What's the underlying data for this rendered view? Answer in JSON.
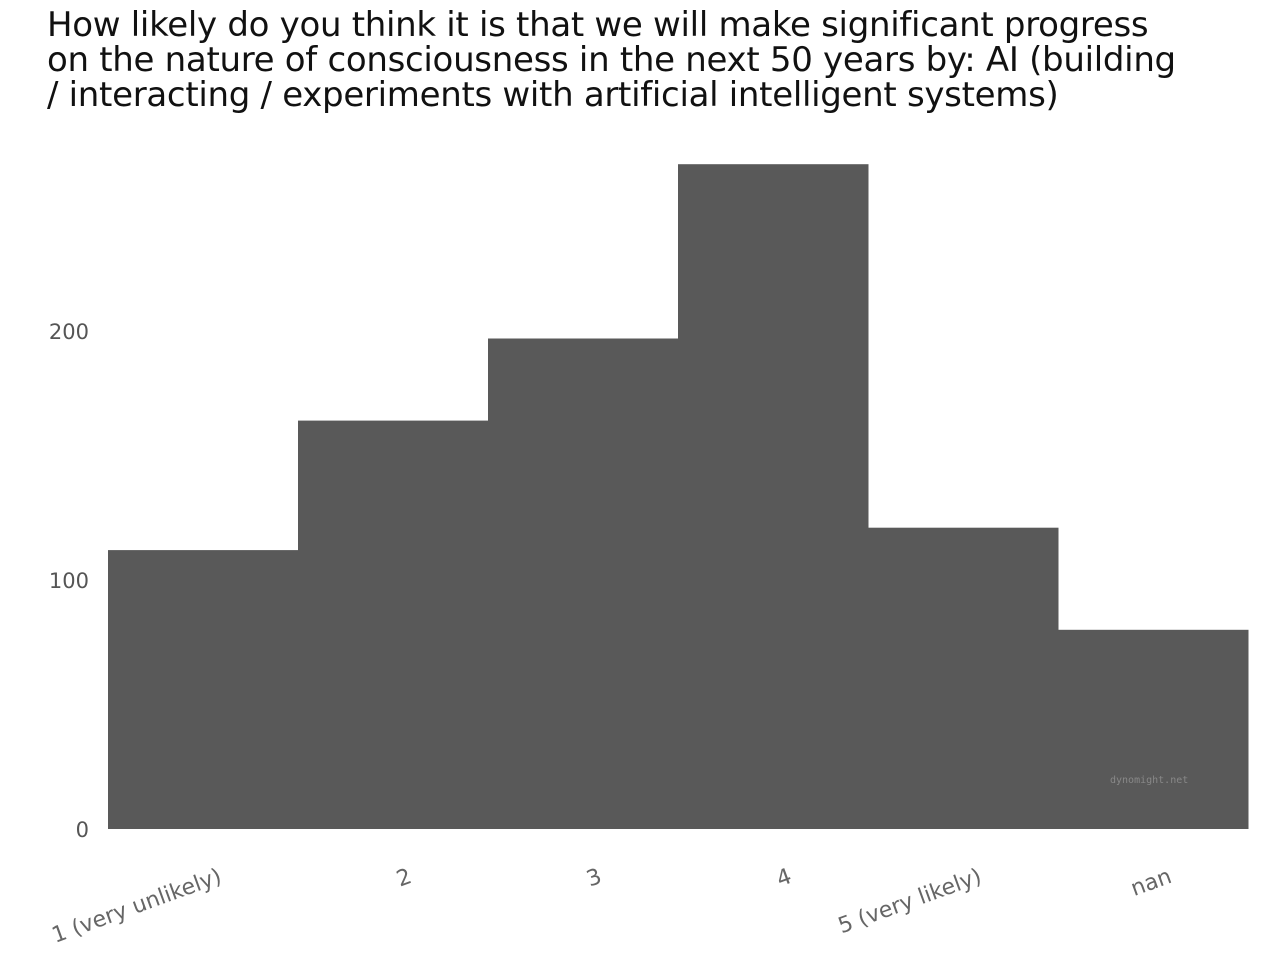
{
  "chart_data": {
    "type": "bar",
    "title": "How likely do you think it is that we will make significant progress\non the nature of consciousness in the next 50 years by: AI (building\n/ interacting / experiments with artificial intelligent systems)",
    "categories": [
      "1 (very unlikely)",
      "2",
      "3",
      "4",
      "5 (very likely)",
      "nan"
    ],
    "values": [
      112,
      164,
      197,
      267,
      121,
      80
    ],
    "xlabel": "",
    "ylabel": "",
    "ylim": [
      0,
      270
    ],
    "yticks": [
      0,
      100,
      200
    ],
    "grid": false,
    "legend": "none",
    "bar_color": "#595959"
  },
  "watermark": "dynomight.net"
}
